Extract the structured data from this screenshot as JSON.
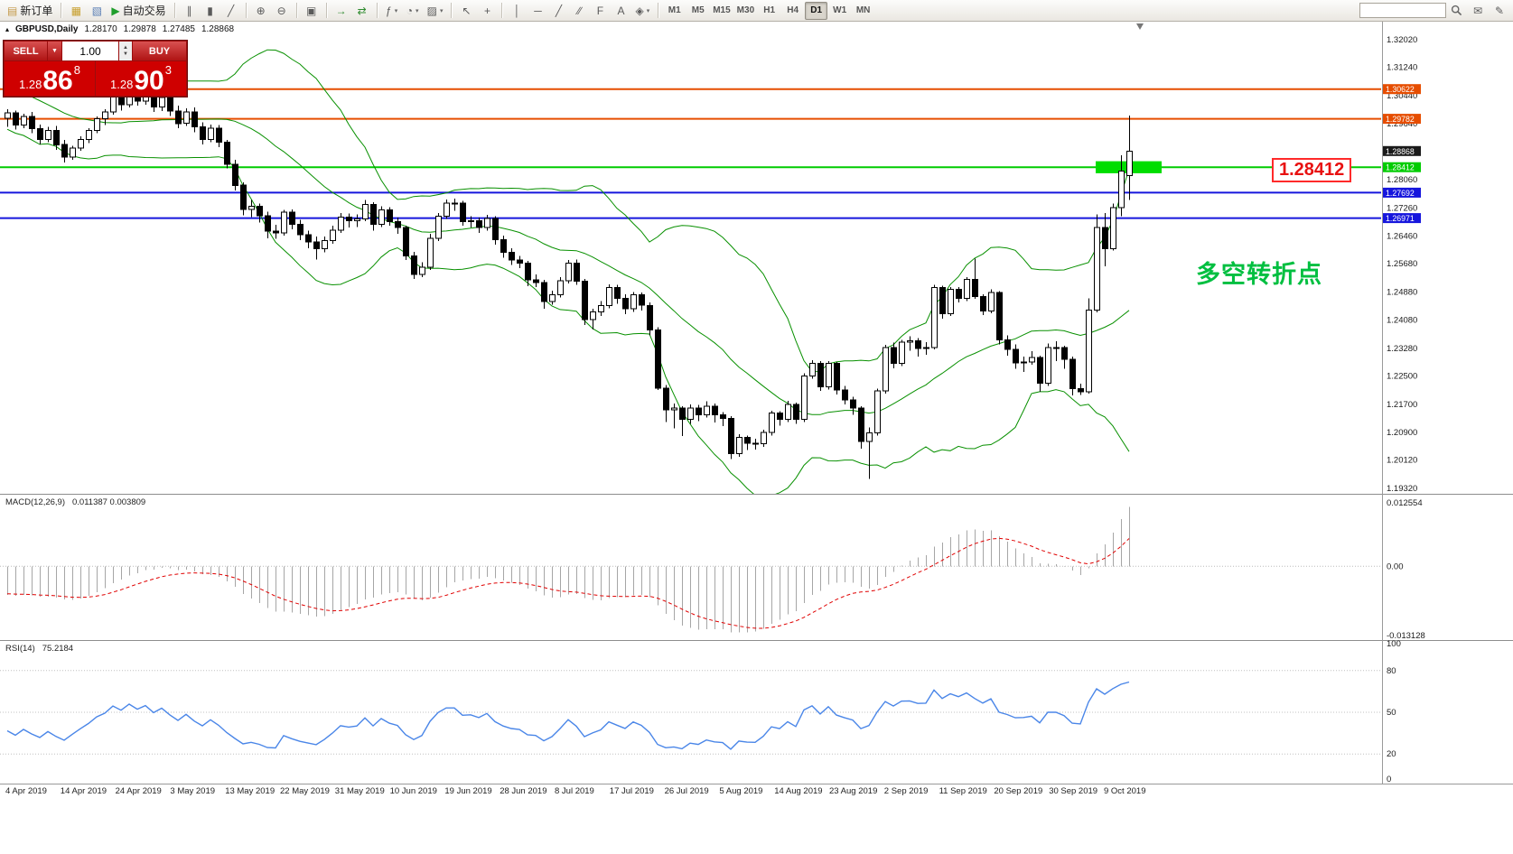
{
  "ui": {
    "caret_down": "▼",
    "caret_small": "▾",
    "spin_up": "▲",
    "spin_down": "▼"
  },
  "toolbar": {
    "groups": [
      {
        "items": [
          {
            "name": "new-order-button",
            "icon": "new-order-icon",
            "glyph": "▤",
            "glyph_color": "#c49a4a",
            "label": "新订单"
          }
        ]
      },
      {
        "items": [
          {
            "name": "charts-window-button",
            "icon": "chart-window-icon",
            "glyph": "▦",
            "glyph_color": "#c8a030"
          },
          {
            "name": "profiles-button",
            "icon": "profiles-icon",
            "glyph": "▧",
            "glyph_color": "#5a7fb5"
          },
          {
            "name": "auto-trading-button",
            "icon": "play-icon",
            "glyph": "▶",
            "glyph_color": "#1f9e2c",
            "label": "自动交易"
          }
        ]
      },
      {
        "items": [
          {
            "name": "bar-chart-button",
            "icon": "bar-chart-icon",
            "glyph": "∥"
          },
          {
            "name": "candlestick-chart-button",
            "icon": "candlestick-icon",
            "glyph": "▮"
          },
          {
            "name": "line-chart-button",
            "icon": "line-chart-icon",
            "glyph": "╱"
          }
        ]
      },
      {
        "items": [
          {
            "name": "zoom-in-button",
            "icon": "zoom-in-icon",
            "glyph": "⊕"
          },
          {
            "name": "zoom-out-button",
            "icon": "zoom-out-icon",
            "glyph": "⊖"
          }
        ]
      },
      {
        "items": [
          {
            "name": "tile-windows-button",
            "icon": "tile-windows-icon",
            "glyph": "▣"
          }
        ]
      },
      {
        "items": [
          {
            "name": "auto-scroll-button",
            "icon": "auto-scroll-icon",
            "glyph": "→",
            "glyph_color": "#2e8b2e"
          },
          {
            "name": "chart-shift-button",
            "icon": "chart-shift-icon",
            "glyph": "⇄",
            "glyph_color": "#2e8b2e"
          }
        ]
      },
      {
        "items": [
          {
            "name": "indicators-button",
            "icon": "indicators-icon",
            "glyph": "ƒ",
            "caret": true
          },
          {
            "name": "periods-button",
            "icon": "periods-icon",
            "glyph": "◔",
            "caret": true
          },
          {
            "name": "templates-button",
            "icon": "templates-icon",
            "glyph": "▨",
            "caret": true
          }
        ]
      },
      {
        "items": [
          {
            "name": "cursor-button",
            "icon": "cursor-icon",
            "glyph": "↖"
          },
          {
            "name": "crosshair-button",
            "icon": "crosshair-icon",
            "glyph": "+"
          }
        ]
      },
      {
        "items": [
          {
            "name": "vertical-line-button",
            "icon": "vertical-line-icon",
            "glyph": "│"
          },
          {
            "name": "horizontal-line-button",
            "icon": "horizontal-line-icon",
            "glyph": "─"
          },
          {
            "name": "trendline-button",
            "icon": "trendline-icon",
            "glyph": "╱"
          },
          {
            "name": "channel-button",
            "icon": "channel-icon",
            "glyph": "∕∕"
          },
          {
            "name": "fibonacci-button",
            "icon": "fibonacci-icon",
            "glyph": "F"
          },
          {
            "name": "text-button",
            "icon": "text-icon",
            "glyph": "A"
          },
          {
            "name": "arrows-button",
            "icon": "arrows-icon",
            "glyph": "◈",
            "caret": true
          }
        ]
      }
    ],
    "timeframes": [
      {
        "label": "M1"
      },
      {
        "label": "M5"
      },
      {
        "label": "M15"
      },
      {
        "label": "M30"
      },
      {
        "label": "H1"
      },
      {
        "label": "H4"
      },
      {
        "label": "D1",
        "active": true
      },
      {
        "label": "W1"
      },
      {
        "label": "MN"
      }
    ],
    "search": {
      "placeholder": ""
    },
    "right_icons": [
      {
        "name": "chat-button",
        "icon": "chat-icon",
        "glyph": "✉"
      },
      {
        "name": "edit-button",
        "icon": "edit-icon",
        "glyph": "✎"
      }
    ]
  },
  "chart_header": {
    "icon": "▴",
    "symbol_period": "GBPUSD,Daily",
    "open": "1.28170",
    "high": "1.29878",
    "low": "1.27485",
    "close": "1.28868"
  },
  "order_panel": {
    "sell_label": "SELL",
    "buy_label": "BUY",
    "volume": "1.00",
    "sell_price": {
      "prefix": "1.28",
      "big": "86",
      "sup": "8"
    },
    "buy_price": {
      "prefix": "1.28",
      "big": "90",
      "sup": "3"
    }
  },
  "price_axis": {
    "ticks": [
      "1.32020",
      "1.31240",
      "1.30440",
      "1.29640",
      "1.28860",
      "1.28060",
      "1.27260",
      "1.26460",
      "1.25680",
      "1.24880",
      "1.24080",
      "1.23280",
      "1.22500",
      "1.21700",
      "1.20900",
      "1.20120",
      "1.19320"
    ],
    "current": {
      "label": "1.28868",
      "price": 1.28868,
      "bg": "#1a1a1a"
    }
  },
  "levels": [
    {
      "label": "1.30622",
      "price": 1.30622,
      "color": "#e64d00"
    },
    {
      "label": "1.29782",
      "price": 1.29782,
      "color": "#e64d00"
    },
    {
      "label": "1.28412",
      "price": 1.28412,
      "color": "#00cc00"
    },
    {
      "label": "1.27692",
      "price": 1.27692,
      "color": "#1616dd"
    },
    {
      "label": "1.26971",
      "price": 1.26971,
      "color": "#1616dd"
    }
  ],
  "annotations": {
    "price_box": "1.28412",
    "turning_point": "多空转折点",
    "highlight": {
      "price_from": 1.2824,
      "price_to": 1.2858,
      "color": "#00dd00"
    }
  },
  "macd_panel": {
    "title": "MACD(12,26,9)",
    "values": "0.011387 0.003809",
    "axis_max": 0.012554,
    "axis_min": -0.013128,
    "axis_labels": [
      "0.012554",
      "0.00",
      "-0.013128"
    ]
  },
  "rsi_panel": {
    "title": "RSI(14)",
    "value": "75.2184",
    "axis_labels": [
      "100",
      "80",
      "50",
      "20",
      "0"
    ],
    "levels": [
      80,
      50,
      20
    ]
  },
  "chart_data": {
    "type": "candlestick",
    "symbol": "GBPUSD",
    "timeframe": "Daily",
    "ylim": [
      1.1932,
      1.3202
    ],
    "dates": [
      "4 Apr 2019",
      "14 Apr 2019",
      "24 Apr 2019",
      "3 May 2019",
      "13 May 2019",
      "22 May 2019",
      "31 May 2019",
      "10 Jun 2019",
      "19 Jun 2019",
      "28 Jun 2019",
      "8 Jul 2019",
      "17 Jul 2019",
      "26 Jul 2019",
      "5 Aug 2019",
      "14 Aug 2019",
      "23 Aug 2019",
      "2 Sep 2019",
      "11 Sep 2019",
      "20 Sep 2019",
      "30 Sep 2019",
      "9 Oct 2019"
    ],
    "overlays": [
      {
        "name": "Bollinger Bands",
        "period": 20,
        "deviation": 2,
        "color": "#089000"
      }
    ],
    "oscillators": [
      {
        "name": "MACD",
        "fast": 12,
        "slow": 26,
        "signal": 9,
        "histogram_color": "#a6a6a6",
        "signal_color": "#e00000"
      },
      {
        "name": "RSI",
        "period": 14,
        "color": "#4a86e8"
      }
    ],
    "warmup_closes": [
      1.33,
      1.327,
      1.324,
      1.327,
      1.33,
      1.326,
      1.322,
      1.318,
      1.321,
      1.324,
      1.327,
      1.323,
      1.319,
      1.322,
      1.325,
      1.321,
      1.317,
      1.32,
      1.323,
      1.321,
      1.318,
      1.315,
      1.312,
      1.309,
      1.314,
      1.317,
      1.314,
      1.311,
      1.308,
      1.305,
      1.302,
      1.305,
      1.308,
      1.305,
      1.302,
      1.299,
      1.301,
      1.303,
      1.3,
      1.298
    ],
    "candles": [
      [
        1.298,
        1.3005,
        1.2955,
        1.2995
      ],
      [
        1.2995,
        1.3002,
        1.2948,
        1.296
      ],
      [
        1.296,
        1.2992,
        1.2952,
        1.2985
      ],
      [
        1.2985,
        1.2998,
        1.2938,
        1.295
      ],
      [
        1.295,
        1.2962,
        1.2905,
        1.292
      ],
      [
        1.292,
        1.2955,
        1.2912,
        1.2945
      ],
      [
        1.2945,
        1.2958,
        1.289,
        1.2905
      ],
      [
        1.2905,
        1.2918,
        1.2855,
        1.287
      ],
      [
        1.287,
        1.2902,
        1.2862,
        1.2895
      ],
      [
        1.2895,
        1.2928,
        1.2888,
        1.292
      ],
      [
        1.292,
        1.2952,
        1.291,
        1.2945
      ],
      [
        1.2945,
        1.2985,
        1.2938,
        1.2978
      ],
      [
        1.2978,
        1.3005,
        1.296,
        1.2998
      ],
      [
        1.2998,
        1.3048,
        1.299,
        1.304
      ],
      [
        1.304,
        1.3052,
        1.3002,
        1.3018
      ],
      [
        1.3018,
        1.3062,
        1.301,
        1.3055
      ],
      [
        1.3055,
        1.3065,
        1.3015,
        1.3028
      ],
      [
        1.3028,
        1.306,
        1.3018,
        1.305
      ],
      [
        1.305,
        1.3058,
        1.2998,
        1.3012
      ],
      [
        1.3012,
        1.3045,
        1.3,
        1.3038
      ],
      [
        1.3038,
        1.3052,
        1.2986,
        1.3
      ],
      [
        1.3,
        1.3015,
        1.2952,
        1.2965
      ],
      [
        1.2965,
        1.3008,
        1.2958,
        1.2998
      ],
      [
        1.2998,
        1.301,
        1.294,
        1.2955
      ],
      [
        1.2955,
        1.2968,
        1.2905,
        1.292
      ],
      [
        1.292,
        1.2962,
        1.2912,
        1.2952
      ],
      [
        1.2952,
        1.296,
        1.2898,
        1.2912
      ],
      [
        1.2912,
        1.2918,
        1.2838,
        1.285
      ],
      [
        1.285,
        1.2862,
        1.2775,
        1.279
      ],
      [
        1.279,
        1.2798,
        1.2705,
        1.2722
      ],
      [
        1.2722,
        1.2748,
        1.27,
        1.273
      ],
      [
        1.273,
        1.2738,
        1.2685,
        1.2704
      ],
      [
        1.2704,
        1.2715,
        1.264,
        1.266
      ],
      [
        1.266,
        1.2678,
        1.2638,
        1.2655
      ],
      [
        1.2655,
        1.272,
        1.2648,
        1.2714
      ],
      [
        1.2714,
        1.2722,
        1.2665,
        1.268
      ],
      [
        1.268,
        1.2692,
        1.2635,
        1.265
      ],
      [
        1.265,
        1.2662,
        1.2612,
        1.263
      ],
      [
        1.263,
        1.2645,
        1.258,
        1.261
      ],
      [
        1.261,
        1.2645,
        1.26,
        1.2633
      ],
      [
        1.2633,
        1.2675,
        1.2625,
        1.2663
      ],
      [
        1.2663,
        1.2712,
        1.2655,
        1.27
      ],
      [
        1.27,
        1.271,
        1.267,
        1.269
      ],
      [
        1.269,
        1.2708,
        1.2672,
        1.2695
      ],
      [
        1.2695,
        1.2748,
        1.2688,
        1.2736
      ],
      [
        1.2736,
        1.2742,
        1.2662,
        1.268
      ],
      [
        1.268,
        1.273,
        1.2672,
        1.272
      ],
      [
        1.272,
        1.2728,
        1.2675,
        1.2687
      ],
      [
        1.2687,
        1.2698,
        1.2652,
        1.267
      ],
      [
        1.267,
        1.2676,
        1.2578,
        1.259
      ],
      [
        1.259,
        1.2602,
        1.2525,
        1.2538
      ],
      [
        1.2538,
        1.2572,
        1.253,
        1.2558
      ],
      [
        1.2558,
        1.2652,
        1.255,
        1.264
      ],
      [
        1.264,
        1.2712,
        1.2632,
        1.2703
      ],
      [
        1.2703,
        1.275,
        1.2695,
        1.274
      ],
      [
        1.274,
        1.2752,
        1.2718,
        1.274
      ],
      [
        1.274,
        1.2746,
        1.2675,
        1.2687
      ],
      [
        1.2687,
        1.2702,
        1.267,
        1.269
      ],
      [
        1.269,
        1.2698,
        1.2655,
        1.267
      ],
      [
        1.267,
        1.2706,
        1.2662,
        1.2696
      ],
      [
        1.2696,
        1.2702,
        1.2622,
        1.2636
      ],
      [
        1.2636,
        1.2648,
        1.2585,
        1.26
      ],
      [
        1.26,
        1.2612,
        1.2565,
        1.2578
      ],
      [
        1.2578,
        1.259,
        1.2556,
        1.257
      ],
      [
        1.257,
        1.2576,
        1.2505,
        1.2522
      ],
      [
        1.2522,
        1.2538,
        1.2502,
        1.2515
      ],
      [
        1.2515,
        1.2522,
        1.244,
        1.2461
      ],
      [
        1.2461,
        1.2492,
        1.2452,
        1.248
      ],
      [
        1.248,
        1.253,
        1.2472,
        1.252
      ],
      [
        1.252,
        1.2578,
        1.2512,
        1.257
      ],
      [
        1.257,
        1.258,
        1.2508,
        1.2518
      ],
      [
        1.2518,
        1.2525,
        1.2395,
        1.241
      ],
      [
        1.241,
        1.244,
        1.2382,
        1.2432
      ],
      [
        1.2432,
        1.2462,
        1.242,
        1.245
      ],
      [
        1.245,
        1.251,
        1.2442,
        1.25
      ],
      [
        1.25,
        1.2508,
        1.2455,
        1.247
      ],
      [
        1.247,
        1.2482,
        1.2425,
        1.244
      ],
      [
        1.244,
        1.2488,
        1.2432,
        1.248
      ],
      [
        1.248,
        1.2486,
        1.2435,
        1.245
      ],
      [
        1.245,
        1.2458,
        1.2365,
        1.238
      ],
      [
        1.238,
        1.2388,
        1.221,
        1.2216
      ],
      [
        1.2216,
        1.2225,
        1.212,
        1.2155
      ],
      [
        1.2155,
        1.2172,
        1.2102,
        1.216
      ],
      [
        1.216,
        1.2165,
        1.208,
        1.2127
      ],
      [
        1.2127,
        1.217,
        1.2115,
        1.216
      ],
      [
        1.216,
        1.2168,
        1.2122,
        1.214
      ],
      [
        1.214,
        1.2178,
        1.2132,
        1.2165
      ],
      [
        1.2165,
        1.2172,
        1.2118,
        1.214
      ],
      [
        1.214,
        1.2148,
        1.2108,
        1.213
      ],
      [
        1.213,
        1.2136,
        1.2015,
        1.203
      ],
      [
        1.203,
        1.2085,
        1.2022,
        1.2076
      ],
      [
        1.2076,
        1.2082,
        1.204,
        1.206
      ],
      [
        1.206,
        1.2072,
        1.2042,
        1.2058
      ],
      [
        1.2058,
        1.2098,
        1.205,
        1.209
      ],
      [
        1.209,
        1.2152,
        1.2082,
        1.2145
      ],
      [
        1.2145,
        1.215,
        1.211,
        1.2128
      ],
      [
        1.2128,
        1.218,
        1.212,
        1.217
      ],
      [
        1.217,
        1.2175,
        1.2115,
        1.2128
      ],
      [
        1.2128,
        1.2258,
        1.212,
        1.225
      ],
      [
        1.225,
        1.2295,
        1.2242,
        1.2286
      ],
      [
        1.2286,
        1.2292,
        1.2208,
        1.2219
      ],
      [
        1.2219,
        1.2292,
        1.2212,
        1.2286
      ],
      [
        1.2286,
        1.229,
        1.2198,
        1.221
      ],
      [
        1.221,
        1.2222,
        1.217,
        1.2183
      ],
      [
        1.2183,
        1.2192,
        1.214,
        1.216
      ],
      [
        1.216,
        1.2165,
        1.2045,
        1.2065
      ],
      [
        1.2065,
        1.2105,
        1.1959,
        1.2089
      ],
      [
        1.2089,
        1.2215,
        1.2082,
        1.2208
      ],
      [
        1.2208,
        1.2338,
        1.22,
        1.233
      ],
      [
        1.233,
        1.2345,
        1.2272,
        1.2286
      ],
      [
        1.2286,
        1.2352,
        1.2278,
        1.2346
      ],
      [
        1.2346,
        1.2362,
        1.2322,
        1.235
      ],
      [
        1.235,
        1.2358,
        1.2305,
        1.2328
      ],
      [
        1.2328,
        1.2346,
        1.231,
        1.2331
      ],
      [
        1.2331,
        1.2508,
        1.2325,
        1.25
      ],
      [
        1.25,
        1.2506,
        1.2412,
        1.2427
      ],
      [
        1.2427,
        1.2502,
        1.242,
        1.2495
      ],
      [
        1.2495,
        1.2502,
        1.2458,
        1.247
      ],
      [
        1.247,
        1.253,
        1.2462,
        1.2523
      ],
      [
        1.2523,
        1.2582,
        1.2468,
        1.2475
      ],
      [
        1.2475,
        1.2482,
        1.2422,
        1.2434
      ],
      [
        1.2434,
        1.2495,
        1.2428,
        1.2486
      ],
      [
        1.2486,
        1.249,
        1.234,
        1.2352
      ],
      [
        1.2352,
        1.2365,
        1.2308,
        1.2325
      ],
      [
        1.2325,
        1.234,
        1.227,
        1.2287
      ],
      [
        1.2287,
        1.2305,
        1.2262,
        1.229
      ],
      [
        1.229,
        1.232,
        1.2282,
        1.2302
      ],
      [
        1.2302,
        1.2308,
        1.2205,
        1.223
      ],
      [
        1.223,
        1.2342,
        1.2222,
        1.233
      ],
      [
        1.233,
        1.2348,
        1.2292,
        1.233
      ],
      [
        1.233,
        1.2336,
        1.227,
        1.2297
      ],
      [
        1.2297,
        1.2305,
        1.2195,
        1.2215
      ],
      [
        1.2215,
        1.2228,
        1.2196,
        1.2206
      ],
      [
        1.2206,
        1.247,
        1.22,
        1.2437
      ],
      [
        1.2437,
        1.2708,
        1.243,
        1.267
      ],
      [
        1.267,
        1.2712,
        1.256,
        1.261
      ],
      [
        1.261,
        1.2738,
        1.2605,
        1.2727
      ],
      [
        1.2727,
        1.2875,
        1.2702,
        1.283
      ],
      [
        1.2817,
        1.29878,
        1.27485,
        1.28868
      ]
    ]
  }
}
